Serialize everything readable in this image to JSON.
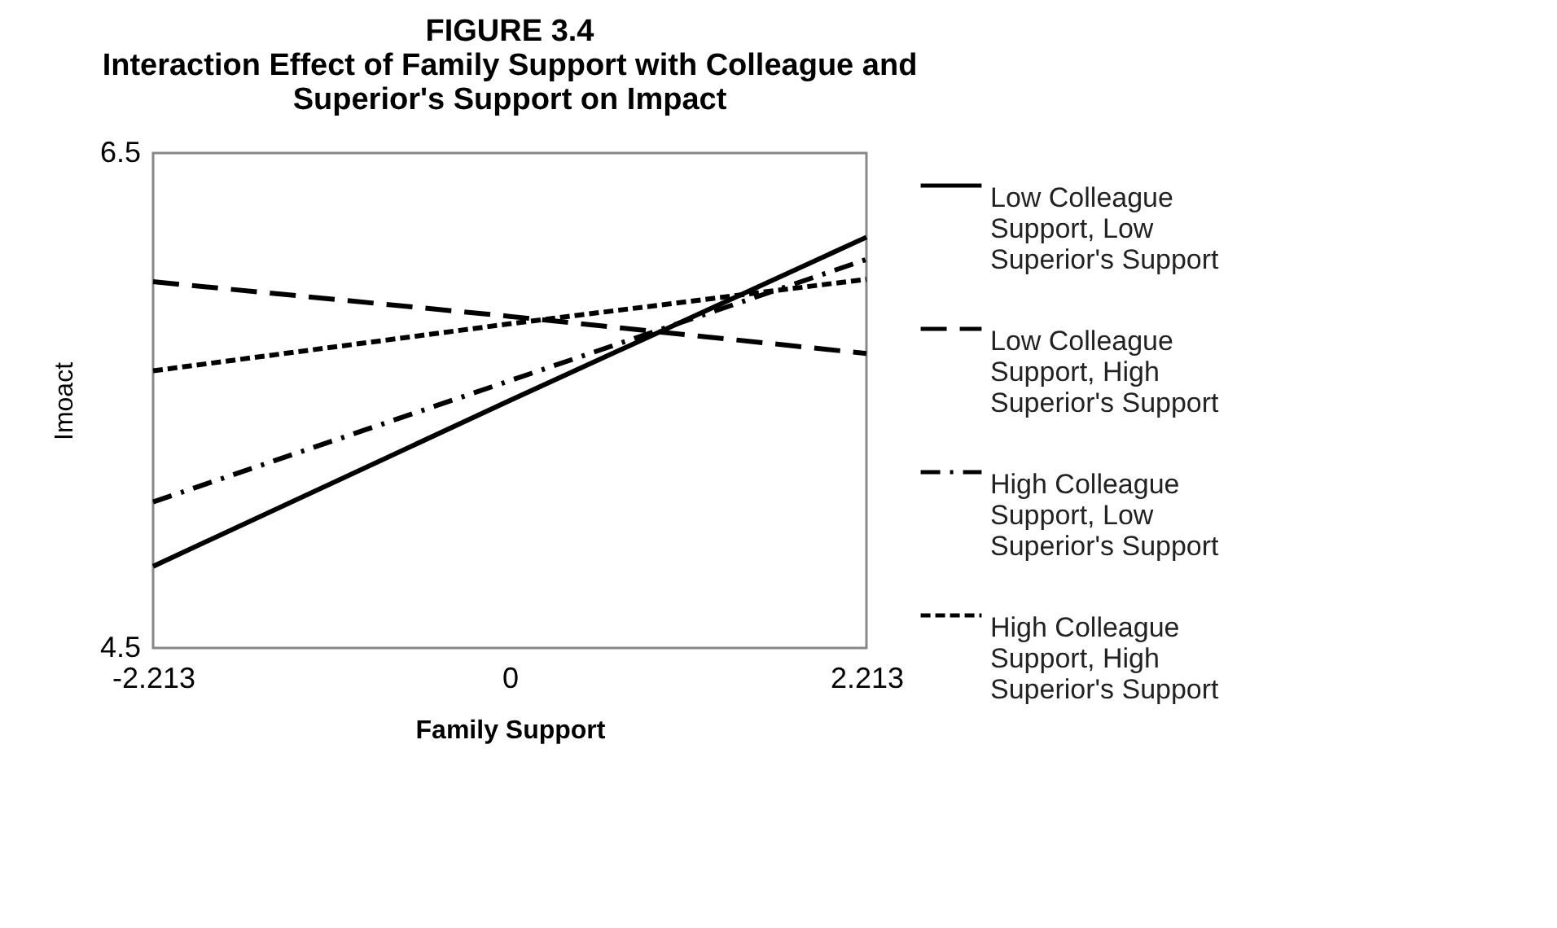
{
  "chart_data": {
    "type": "line",
    "title": "FIGURE 3.4",
    "subtitle": "Interaction Effect of Family Support with Colleague and Superior's Support on Impact",
    "xlabel": "Family Support",
    "ylabel": "Imoact",
    "x": [
      -2.213,
      0,
      2.213
    ],
    "xlim": [
      -2.213,
      2.213
    ],
    "xticks": [
      {
        "value": -2.213,
        "label": "-2.213"
      },
      0,
      {
        "value": 2.213,
        "label": "2.213"
      }
    ],
    "ylim": [
      4.5,
      6.5
    ],
    "yticks": [
      4.5,
      6.5
    ],
    "grid": false,
    "legend": "right",
    "marker": "none",
    "series": [
      {
        "name": "Low Colleague Support, Low Superior's Support",
        "color": "#000000",
        "line_style": "solid",
        "values": [
          4.83,
          5.5,
          6.16
        ]
      },
      {
        "name": "Low Colleague Support, High Superior's Support",
        "color": "#000000",
        "line_style": "longdash",
        "values": [
          5.98,
          5.84,
          5.69
        ]
      },
      {
        "name": "High Colleague Support, Low Superior's Support",
        "color": "#000000",
        "line_style": "dashdot",
        "values": [
          5.09,
          5.58,
          6.07
        ]
      },
      {
        "name": "High Colleague Support, High Superior's Support",
        "color": "#000000",
        "line_style": "dashed",
        "values": [
          5.62,
          5.81,
          5.99
        ]
      }
    ]
  }
}
